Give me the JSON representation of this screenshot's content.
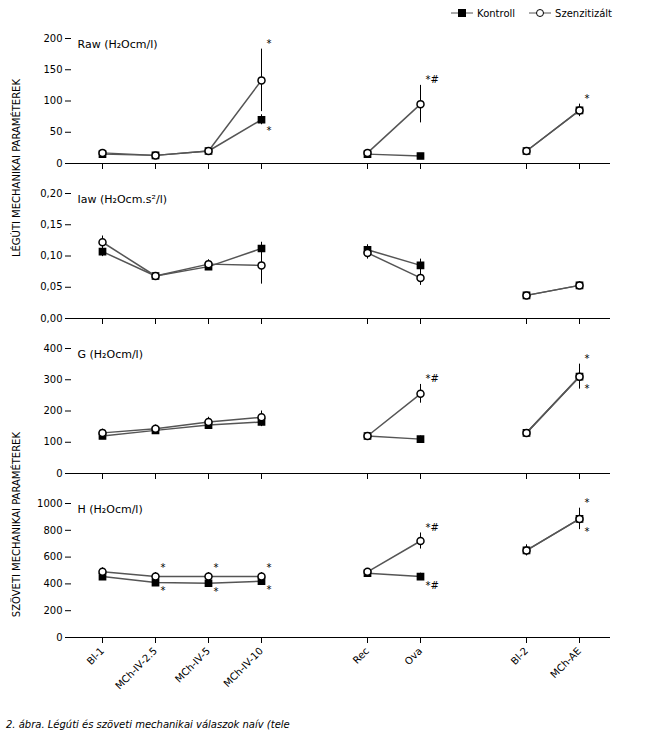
{
  "chart_data": [
    {
      "type": "line",
      "title": "Raw (H₂Ocm/l)",
      "ylabel": "LÉGÚTI MECHANIKAI PARAMÉTEREK",
      "categories": [
        "Bl-1",
        "MCh-IV-2.5",
        "MCh-IV-5",
        "MCh-IV-10",
        null,
        "Rec",
        "Ova",
        null,
        "Bl-2",
        "MCh-AE"
      ],
      "ylim": [
        0,
        200
      ],
      "yticks": [
        0,
        50,
        100,
        150,
        200
      ],
      "tick_labels": "y",
      "legend": "upper right",
      "series": [
        {
          "name": "Kontroll",
          "color": "#555555",
          "marker": "square",
          "values": [
            15,
            13,
            20,
            70,
            null,
            15,
            12,
            null,
            20,
            85
          ],
          "errors": [
            2,
            2,
            3,
            8,
            null,
            2,
            2,
            null,
            3,
            8
          ],
          "annotations": [
            null,
            null,
            null,
            "*",
            null,
            null,
            null,
            null,
            null,
            null
          ]
        },
        {
          "name": "Szenzitizált",
          "color": "#555555",
          "marker": "circle",
          "values": [
            17,
            13,
            20,
            133,
            null,
            17,
            95,
            null,
            20,
            85
          ],
          "errors": [
            3,
            2,
            3,
            50,
            null,
            3,
            30,
            null,
            3,
            10
          ],
          "annotations": [
            null,
            null,
            null,
            "*",
            null,
            null,
            "*#",
            null,
            null,
            "*"
          ]
        }
      ]
    },
    {
      "type": "line",
      "title": "Iaw (H₂Ocm.s²/l)",
      "categories": [
        "Bl-1",
        "MCh-IV-2.5",
        "MCh-IV-5",
        "MCh-IV-10",
        null,
        "Rec",
        "Ova",
        null,
        "Bl-2",
        "MCh-AE"
      ],
      "ylim": [
        0.0,
        0.2
      ],
      "yticks": [
        {
          "value": 0.0,
          "label": "0,00"
        },
        {
          "value": 0.05,
          "label": "0,05"
        },
        {
          "value": 0.1,
          "label": "0,10"
        },
        {
          "value": 0.15,
          "label": "0,15"
        },
        {
          "value": 0.2,
          "label": "0,20"
        }
      ],
      "tick_labels": "y",
      "series": [
        {
          "name": "Kontroll",
          "color": "#555555",
          "marker": "square",
          "values": [
            0.107,
            0.068,
            0.083,
            0.112,
            null,
            0.11,
            0.085,
            null,
            0.037,
            0.053
          ],
          "errors": [
            0.008,
            0.005,
            0.006,
            0.01,
            null,
            0.008,
            0.01,
            null,
            0.003,
            0.006
          ]
        },
        {
          "name": "Szenzitizált",
          "color": "#555555",
          "marker": "circle",
          "values": [
            0.122,
            0.068,
            0.087,
            0.085,
            null,
            0.105,
            0.065,
            null,
            0.037,
            0.053
          ],
          "errors": [
            0.01,
            0.005,
            0.007,
            0.03,
            null,
            0.01,
            0.012,
            null,
            0.003,
            0.006
          ]
        }
      ]
    },
    {
      "type": "line",
      "title": "G (H₂Ocm/l)",
      "ylabel": "SZÖVETI MECHANIKAI PARAMÉTEREK",
      "categories": [
        "Bl-1",
        "MCh-IV-2.5",
        "MCh-IV-5",
        "MCh-IV-10",
        null,
        "Rec",
        "Ova",
        null,
        "Bl-2",
        "MCh-AE"
      ],
      "ylim": [
        0,
        400
      ],
      "yticks": [
        0,
        100,
        200,
        300,
        400
      ],
      "tick_labels": "y",
      "series": [
        {
          "name": "Kontroll",
          "color": "#555555",
          "marker": "square",
          "values": [
            120,
            138,
            155,
            165,
            null,
            120,
            110,
            null,
            130,
            310
          ],
          "errors": [
            10,
            10,
            12,
            15,
            null,
            10,
            10,
            null,
            10,
            20
          ],
          "annotations": [
            null,
            null,
            null,
            null,
            null,
            null,
            null,
            null,
            null,
            "*"
          ]
        },
        {
          "name": "Szenzitizált",
          "color": "#555555",
          "marker": "circle",
          "values": [
            130,
            143,
            165,
            180,
            null,
            120,
            255,
            null,
            130,
            310
          ],
          "errors": [
            12,
            12,
            15,
            20,
            null,
            10,
            30,
            null,
            10,
            40
          ],
          "annotations": [
            null,
            null,
            null,
            null,
            null,
            null,
            "*#",
            null,
            null,
            "*"
          ]
        }
      ]
    },
    {
      "type": "line",
      "title": "H (H₂Ocm/l)",
      "categories": [
        "Bl-1",
        "MCh-IV-2.5",
        "MCh-IV-5",
        "MCh-IV-10",
        null,
        "Rec",
        "Ova",
        null,
        "Bl-2",
        "MCh-AE"
      ],
      "ylim": [
        0,
        1000
      ],
      "yticks": [
        0,
        200,
        400,
        600,
        800,
        1000
      ],
      "series": [
        {
          "name": "Kontroll",
          "color": "#555555",
          "marker": "square",
          "values": [
            455,
            410,
            405,
            420,
            null,
            480,
            455,
            null,
            650,
            885
          ],
          "errors": [
            25,
            20,
            20,
            20,
            null,
            25,
            25,
            null,
            40,
            50
          ],
          "annotations": [
            null,
            "*",
            "*",
            "*",
            null,
            null,
            "*#",
            null,
            null,
            "*"
          ]
        },
        {
          "name": "Szenzitizált",
          "color": "#555555",
          "marker": "circle",
          "values": [
            490,
            455,
            455,
            455,
            null,
            490,
            720,
            null,
            650,
            885
          ],
          "errors": [
            30,
            30,
            30,
            30,
            null,
            25,
            60,
            null,
            40,
            80
          ],
          "annotations": [
            null,
            "*",
            "*",
            "*",
            null,
            null,
            "*#",
            null,
            null,
            "*"
          ]
        }
      ]
    }
  ],
  "caption": "2. ábra. Légúti és szöveti mechanikai válaszok naív (tele"
}
